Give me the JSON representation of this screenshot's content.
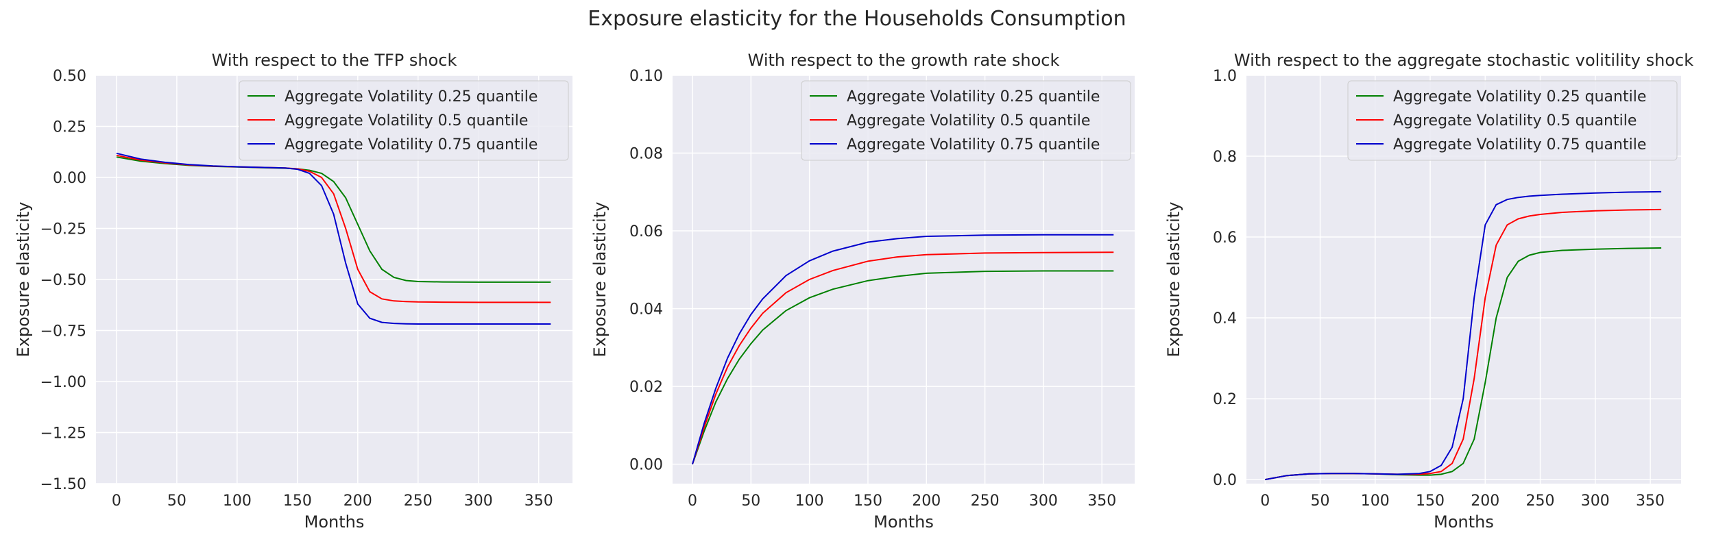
{
  "suptitle": "Exposure elasticity for the Households Consumption",
  "chart_data": [
    {
      "type": "line",
      "title": "With respect to the TFP shock",
      "xlabel": "Months",
      "ylabel": "Exposure elasticity",
      "xlim": [
        -17,
        378
      ],
      "ylim": [
        -1.5,
        0.5
      ],
      "xticks": [
        0,
        50,
        100,
        150,
        200,
        250,
        300,
        350
      ],
      "xtick_labels": [
        "0",
        "50",
        "100",
        "150",
        "200",
        "250",
        "300",
        "350"
      ],
      "yticks": [
        -1.5,
        -1.25,
        -1.0,
        -0.75,
        -0.5,
        -0.25,
        0.0,
        0.25,
        0.5
      ],
      "ytick_labels": [
        "−1.50",
        "−1.25",
        "−1.00",
        "−0.75",
        "−0.50",
        "−0.25",
        "0.00",
        "0.25",
        "0.50"
      ],
      "grid": true,
      "legend": "top-right",
      "x": [
        0,
        20,
        40,
        60,
        80,
        100,
        120,
        140,
        150,
        160,
        170,
        180,
        190,
        200,
        210,
        220,
        230,
        240,
        250,
        270,
        300,
        330,
        360
      ],
      "series": [
        {
          "name": "Aggregate Volatility 0.25 quantile",
          "color": "#008000",
          "values": [
            0.1,
            0.08,
            0.068,
            0.059,
            0.054,
            0.051,
            0.048,
            0.045,
            0.042,
            0.035,
            0.02,
            -0.02,
            -0.1,
            -0.23,
            -0.36,
            -0.45,
            -0.49,
            -0.505,
            -0.51,
            -0.512,
            -0.513,
            -0.513,
            -0.513
          ]
        },
        {
          "name": "Aggregate Volatility 0.5 quantile",
          "color": "#ff0000",
          "values": [
            0.108,
            0.085,
            0.071,
            0.061,
            0.055,
            0.052,
            0.049,
            0.046,
            0.042,
            0.03,
            0.0,
            -0.08,
            -0.25,
            -0.45,
            -0.56,
            -0.595,
            -0.605,
            -0.608,
            -0.61,
            -0.611,
            -0.612,
            -0.612,
            -0.612
          ]
        },
        {
          "name": "Aggregate Volatility 0.75 quantile",
          "color": "#0000cc",
          "values": [
            0.118,
            0.09,
            0.074,
            0.063,
            0.056,
            0.052,
            0.049,
            0.046,
            0.04,
            0.02,
            -0.04,
            -0.18,
            -0.42,
            -0.62,
            -0.69,
            -0.71,
            -0.715,
            -0.717,
            -0.718,
            -0.718,
            -0.718,
            -0.718,
            -0.718
          ]
        }
      ]
    },
    {
      "type": "line",
      "title": "With respect to the growth rate shock",
      "xlabel": "Months",
      "ylabel": "Exposure elasticity",
      "xlim": [
        -17,
        378
      ],
      "ylim": [
        -0.005,
        0.1
      ],
      "xticks": [
        0,
        50,
        100,
        150,
        200,
        250,
        300,
        350
      ],
      "xtick_labels": [
        "0",
        "50",
        "100",
        "150",
        "200",
        "250",
        "300",
        "350"
      ],
      "yticks": [
        0.0,
        0.02,
        0.04,
        0.06,
        0.08,
        0.1
      ],
      "ytick_labels": [
        "0.00",
        "0.02",
        "0.04",
        "0.06",
        "0.08",
        "0.10"
      ],
      "grid": true,
      "legend": "top-right",
      "x": [
        0,
        10,
        20,
        30,
        40,
        50,
        60,
        80,
        100,
        120,
        150,
        175,
        200,
        250,
        300,
        360
      ],
      "series": [
        {
          "name": "Aggregate Volatility 0.25 quantile",
          "color": "#008000",
          "values": [
            0.0,
            0.0085,
            0.016,
            0.022,
            0.027,
            0.031,
            0.0345,
            0.0395,
            0.0428,
            0.045,
            0.0472,
            0.0483,
            0.0491,
            0.0496,
            0.0497,
            0.0497
          ]
        },
        {
          "name": "Aggregate Volatility 0.5 quantile",
          "color": "#ff0000",
          "values": [
            0.0,
            0.0095,
            0.018,
            0.025,
            0.0305,
            0.035,
            0.0388,
            0.0441,
            0.0475,
            0.0498,
            0.0522,
            0.0533,
            0.0539,
            0.0543,
            0.0544,
            0.0545
          ]
        },
        {
          "name": "Aggregate Volatility 0.75 quantile",
          "color": "#0000cc",
          "values": [
            0.0,
            0.0105,
            0.0195,
            0.0273,
            0.0335,
            0.0385,
            0.0425,
            0.0485,
            0.0523,
            0.0548,
            0.0571,
            0.058,
            0.0586,
            0.0589,
            0.059,
            0.059
          ]
        }
      ]
    },
    {
      "type": "line",
      "title": "With respect to the aggregate stochastic volitility shock",
      "xlabel": "Months",
      "ylabel": "Exposure elasticity",
      "xlim": [
        -17,
        378
      ],
      "ylim": [
        -0.01,
        1.0
      ],
      "xticks": [
        0,
        50,
        100,
        150,
        200,
        250,
        300,
        350
      ],
      "xtick_labels": [
        "0",
        "50",
        "100",
        "150",
        "200",
        "250",
        "300",
        "350"
      ],
      "yticks": [
        0.0,
        0.2,
        0.4,
        0.6,
        0.8,
        1.0
      ],
      "ytick_labels": [
        "0.0",
        "0.2",
        "0.4",
        "0.6",
        "0.8",
        "1.0"
      ],
      "grid": true,
      "legend": "top-right",
      "x": [
        0,
        20,
        40,
        60,
        80,
        100,
        120,
        140,
        150,
        160,
        170,
        180,
        190,
        200,
        210,
        220,
        230,
        240,
        250,
        270,
        300,
        330,
        360
      ],
      "series": [
        {
          "name": "Aggregate Volatility 0.25 quantile",
          "color": "#008000",
          "values": [
            0.0,
            0.01,
            0.014,
            0.015,
            0.015,
            0.014,
            0.012,
            0.011,
            0.011,
            0.013,
            0.02,
            0.04,
            0.1,
            0.24,
            0.4,
            0.5,
            0.54,
            0.555,
            0.562,
            0.567,
            0.57,
            0.572,
            0.573
          ]
        },
        {
          "name": "Aggregate Volatility 0.5 quantile",
          "color": "#ff0000",
          "values": [
            0.0,
            0.01,
            0.014,
            0.015,
            0.015,
            0.014,
            0.013,
            0.013,
            0.015,
            0.02,
            0.04,
            0.1,
            0.25,
            0.45,
            0.58,
            0.63,
            0.645,
            0.652,
            0.656,
            0.661,
            0.665,
            0.667,
            0.668
          ]
        },
        {
          "name": "Aggregate Volatility 0.75 quantile",
          "color": "#0000cc",
          "values": [
            0.0,
            0.01,
            0.014,
            0.015,
            0.015,
            0.014,
            0.013,
            0.015,
            0.02,
            0.035,
            0.08,
            0.2,
            0.45,
            0.63,
            0.68,
            0.693,
            0.698,
            0.701,
            0.703,
            0.706,
            0.709,
            0.711,
            0.712
          ]
        }
      ]
    }
  ]
}
